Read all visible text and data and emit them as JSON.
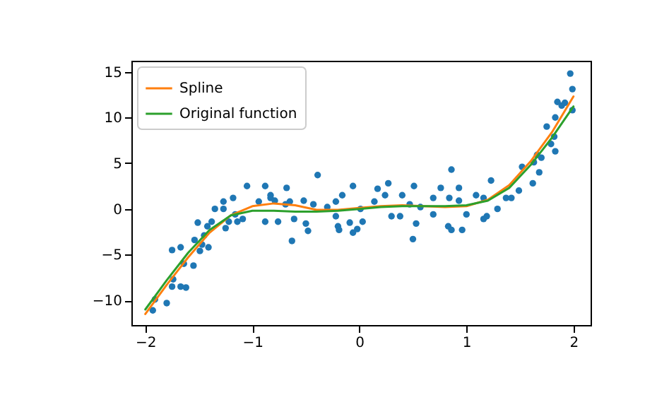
{
  "chart_data": {
    "type": "scatter",
    "xlim": [
      -2.13,
      2.16
    ],
    "ylim": [
      -12.7,
      16.2
    ],
    "xticks": [
      -2,
      -1,
      0,
      1,
      2
    ],
    "yticks": [
      -10,
      -5,
      0,
      5,
      10,
      15
    ],
    "legend": "top left",
    "series": [
      {
        "color": "#1f77b4",
        "marker": "circle",
        "x": [
          -1.93,
          -1.91,
          -1.8,
          -1.74,
          -1.67,
          -1.62,
          -1.75,
          -1.75,
          -1.67,
          -1.64,
          -1.55,
          -1.54,
          -1.49,
          -1.47,
          -1.45,
          -1.41,
          -1.51,
          -1.42,
          -1.38,
          -1.35,
          -1.27,
          -1.27,
          -1.18,
          -1.22,
          -1.25,
          -1.16,
          -1.09,
          -1.14,
          -1.05,
          -0.94,
          -0.88,
          -0.83,
          -0.88,
          -0.76,
          -0.83,
          -0.68,
          -0.65,
          -0.69,
          -0.52,
          -0.5,
          -0.48,
          -0.61,
          -0.39,
          -0.43,
          -0.3,
          -0.22,
          -0.16,
          -0.22,
          -0.2,
          -0.19,
          -0.09,
          -0.06,
          -0.02,
          -0.06,
          0.03,
          0.01,
          0.14,
          0.17,
          0.27,
          0.24,
          0.3,
          0.38,
          0.4,
          -0.63,
          0.5,
          0.51,
          0.53,
          0.47,
          0.57,
          -0.79,
          0.69,
          0.76,
          0.69,
          0.84,
          0.86,
          0.93,
          0.93,
          0.83,
          0.86,
          0.96,
          1.0,
          1.09,
          1.16,
          1.16,
          1.19,
          1.23,
          1.29,
          1.37,
          1.42,
          1.49,
          1.52,
          1.62,
          1.63,
          1.68,
          1.66,
          1.7,
          1.75,
          1.82,
          1.83,
          1.79,
          1.83,
          1.85,
          1.89,
          1.99,
          1.99,
          1.97,
          1.92
        ],
        "values": [
          -11.1,
          -9.9,
          -10.3,
          -7.7,
          -8.5,
          -8.6,
          -8.5,
          -4.5,
          -4.2,
          -6.0,
          -6.2,
          -3.4,
          -4.6,
          -3.9,
          -2.9,
          -4.2,
          -1.5,
          -1.9,
          -1.4,
          0,
          0,
          0.8,
          1.2,
          -1.4,
          -2.1,
          -0.6,
          -1.1,
          -1.4,
          2.5,
          0.8,
          2.5,
          1.2,
          -1.4,
          -1.4,
          1.5,
          2.3,
          0.8,
          0.5,
          0.9,
          -1.6,
          -2.4,
          -1.1,
          3.7,
          0.5,
          0.2,
          0.8,
          1.5,
          -0.8,
          -1.9,
          -2.3,
          -1.5,
          2.5,
          -2.2,
          -2.6,
          -1.4,
          0,
          0.8,
          2.2,
          2.8,
          1.5,
          -0.8,
          -0.8,
          1.5,
          -3.5,
          -3.3,
          2.5,
          -1.6,
          0.5,
          0.2,
          0.9,
          1.2,
          2.3,
          -0.6,
          1.2,
          4.3,
          2.3,
          0.9,
          -1.9,
          -2.3,
          -2.3,
          -0.6,
          1.5,
          1.2,
          -1.1,
          -0.8,
          3.1,
          0,
          1.2,
          1.2,
          2.0,
          4.6,
          2.8,
          5.1,
          4.0,
          5.9,
          5.6,
          9.0,
          7.9,
          6.3,
          7.1,
          10.0,
          11.7,
          11.3,
          10.8,
          13.1,
          14.8,
          11.6
        ]
      },
      {
        "type": "line",
        "name": "Spline",
        "color": "#ff7f0e",
        "marker": "none",
        "x": [
          -2,
          -1.8,
          -1.6,
          -1.4,
          -1.2,
          -1.0,
          -0.8,
          -0.6,
          -0.4,
          -0.2,
          0,
          0.2,
          0.4,
          0.6,
          0.8,
          1.0,
          1.2,
          1.4,
          1.6,
          1.8,
          2.0
        ],
        "values": [
          -11.5,
          -8.3,
          -5.3,
          -2.6,
          -0.7,
          0.3,
          0.6,
          0.4,
          -0.1,
          -0.1,
          0.1,
          0.3,
          0.4,
          0.3,
          0.2,
          0.3,
          1.0,
          2.6,
          5.2,
          8.4,
          12.3
        ]
      },
      {
        "type": "line",
        "name": "Original function",
        "color": "#2ca02c",
        "marker": "none",
        "x": [
          -2,
          -1.8,
          -1.6,
          -1.4,
          -1.2,
          -1.0,
          -0.8,
          -0.6,
          -0.4,
          -0.2,
          0,
          0.2,
          0.4,
          0.6,
          0.8,
          1.0,
          1.2,
          1.4,
          1.6,
          1.8,
          2.0
        ],
        "values": [
          -11,
          -7.8,
          -4.8,
          -2.3,
          -0.7,
          -0.2,
          -0.2,
          -0.3,
          -0.3,
          -0.2,
          0,
          0.2,
          0.3,
          0.3,
          0.3,
          0.4,
          0.9,
          2.3,
          4.8,
          7.8,
          11.2
        ]
      }
    ]
  }
}
